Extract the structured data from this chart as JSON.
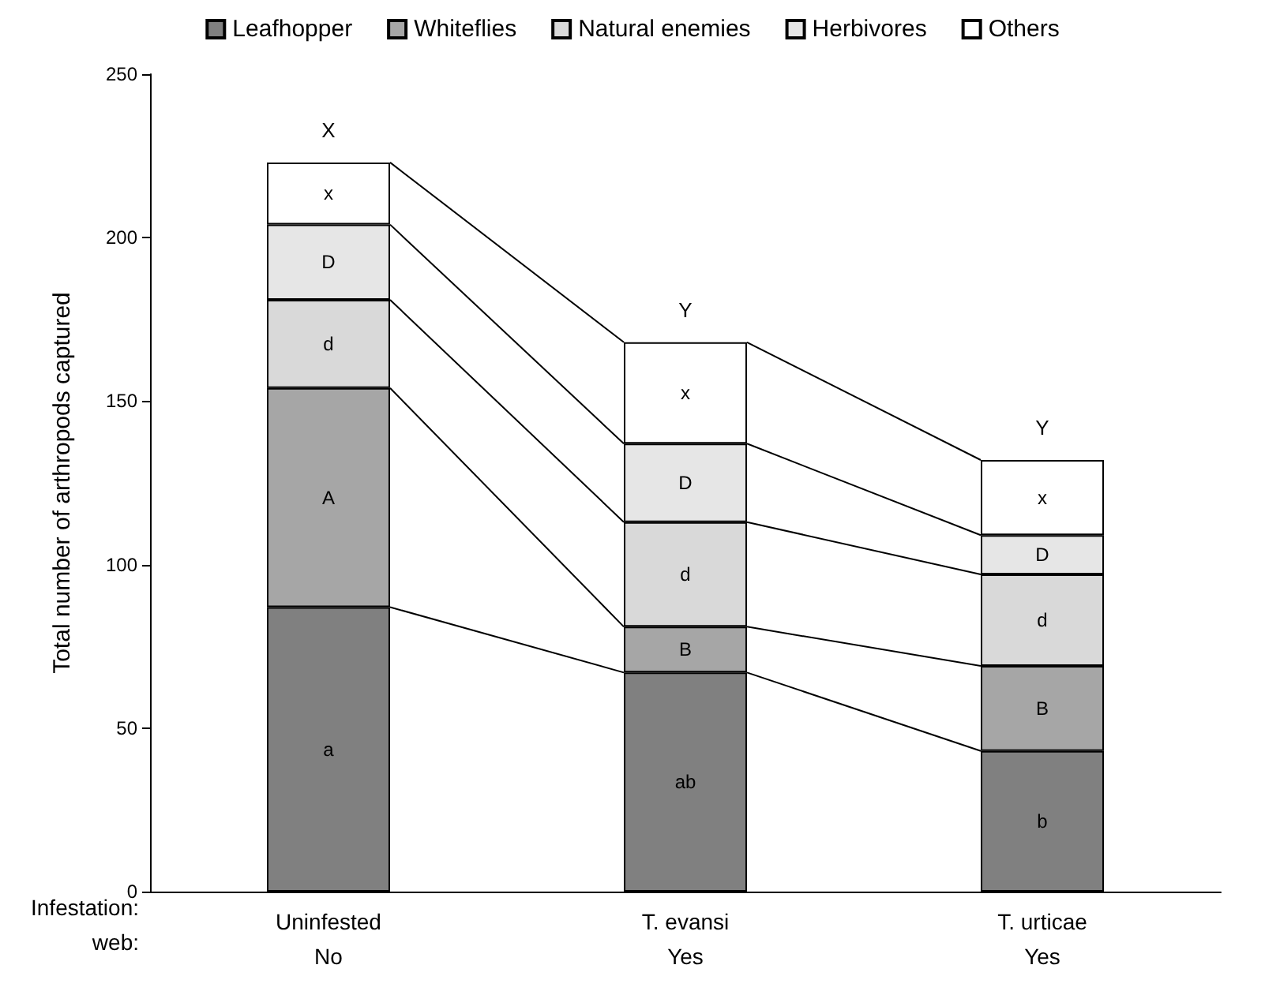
{
  "chart_data": {
    "type": "bar",
    "stacked": true,
    "ylabel": "Total number of arthropods captured",
    "categories": [
      "Uninfested\nNo",
      "T. evansi\nYes",
      "T. urticae\nYes"
    ],
    "series": [
      {
        "name": "Leafhopper",
        "color": "#808080",
        "values": [
          87,
          67,
          43
        ],
        "value_labels": [
          "a",
          "ab",
          "b"
        ]
      },
      {
        "name": "Whiteflies",
        "color": "#a6a6a6",
        "values": [
          67,
          14,
          26
        ],
        "value_labels": [
          "A",
          "B",
          "B"
        ]
      },
      {
        "name": "Natural enemies",
        "color": "#d9d9d9",
        "values": [
          27,
          32,
          28
        ],
        "value_labels": [
          "d",
          "d",
          "d"
        ]
      },
      {
        "name": "Herbivores",
        "color": "#e6e6e6",
        "values": [
          23,
          24,
          12
        ],
        "value_labels": [
          "D",
          "D",
          "D"
        ]
      },
      {
        "name": "Others",
        "color": "#ffffff",
        "values": [
          19,
          31,
          23
        ],
        "value_labels": [
          "x",
          "x",
          "x"
        ]
      }
    ],
    "annotations": [
      {
        "text": "X",
        "x": "Uninfested\nNo",
        "y": 223
      },
      {
        "text": "Y",
        "x": "T. evansi\nYes",
        "y": 168
      },
      {
        "text": "Y",
        "x": "T. urticae\nYes",
        "y": 132
      },
      "Infestation:",
      "web:"
    ],
    "ylim": [
      0,
      250
    ],
    "yticks": [
      0,
      50,
      100,
      150,
      200,
      250
    ],
    "grid": false,
    "legend": "top"
  }
}
